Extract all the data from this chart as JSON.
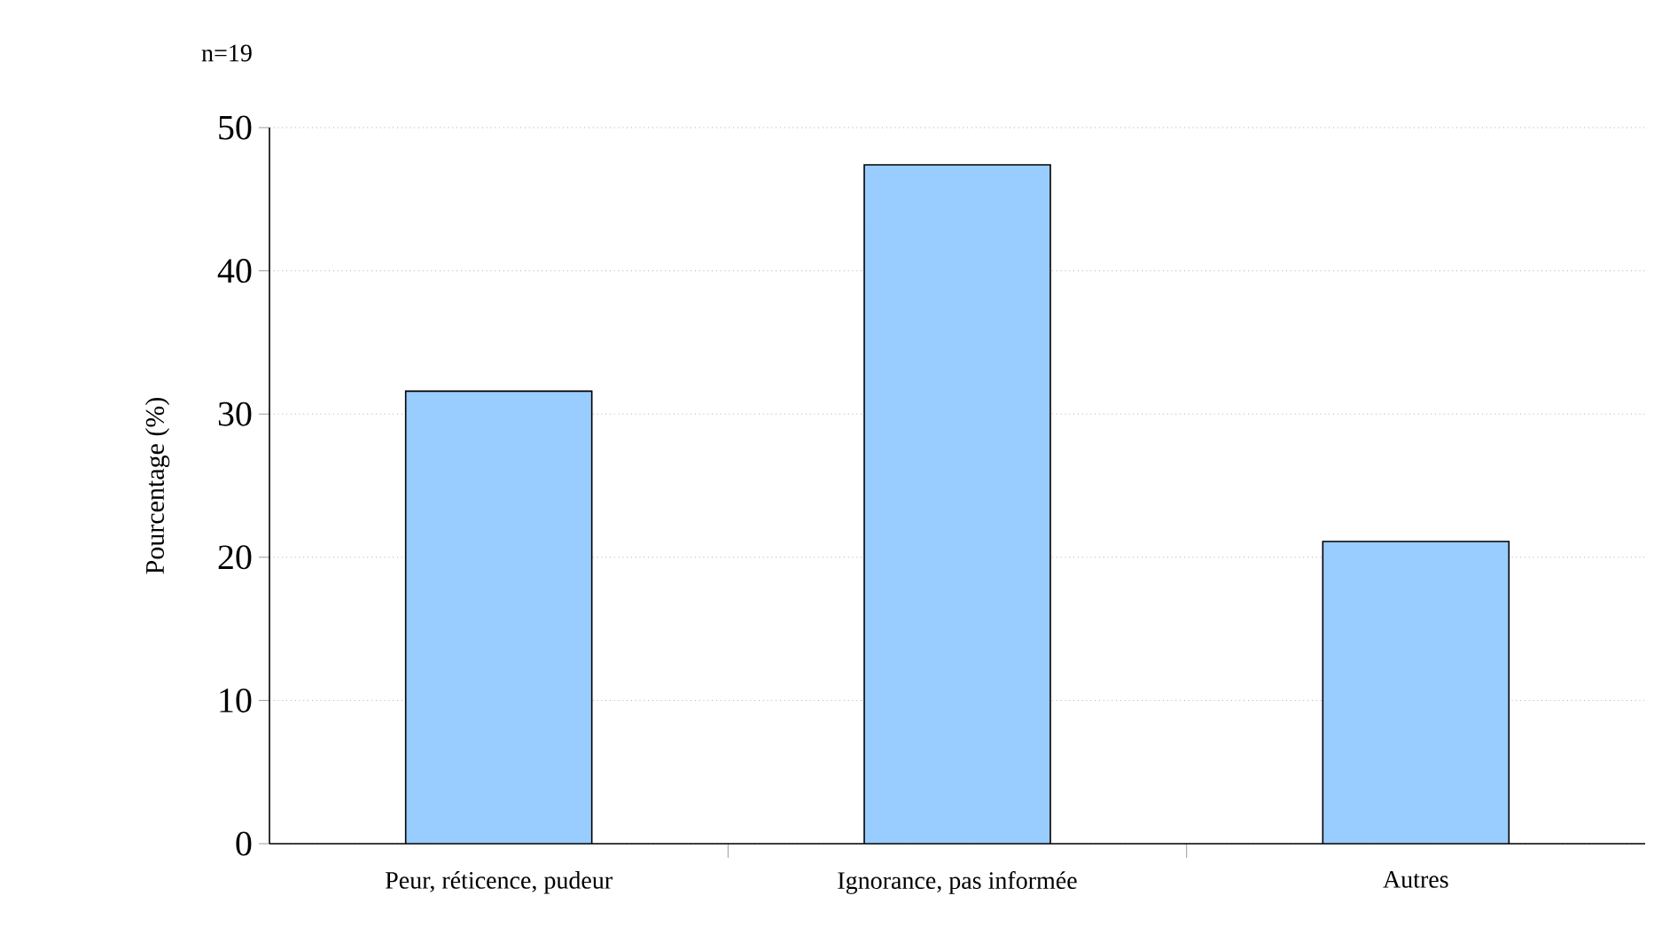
{
  "chart_data": {
    "type": "bar",
    "annotations": [
      "n=19"
    ],
    "ylabel": "Pourcentage (%)",
    "categories": [
      "Peur, réticence, pudeur",
      "Ignorance, pas informée",
      "Autres"
    ],
    "values": [
      31.6,
      47.4,
      21.1
    ],
    "color": "#99ccff",
    "ylim": [
      0,
      50
    ],
    "yticks": [
      0,
      10,
      20,
      30,
      40,
      50
    ],
    "grid": "y"
  }
}
